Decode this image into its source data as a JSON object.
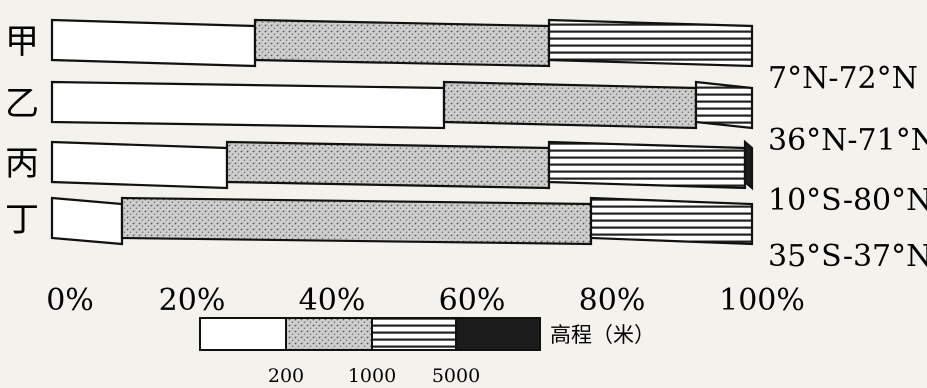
{
  "chart_data": {
    "type": "bar",
    "orientation": "horizontal",
    "stacked": true,
    "title": "",
    "xlabel": "",
    "ylabel": "",
    "xlim": [
      0,
      100
    ],
    "x_ticks": [
      "0%",
      "20%",
      "40%",
      "60%",
      "80%",
      "100%"
    ],
    "categories": [
      "甲",
      "乙",
      "丙",
      "丁"
    ],
    "category_notes": [
      "7°N-72°N",
      "36°N-71°N",
      "10°S-80°N",
      "35°S-37°N"
    ],
    "series": [
      {
        "fill": "white",
        "values": [
          29,
          56,
          25,
          10
        ]
      },
      {
        "fill": "stipple",
        "values": [
          42,
          36,
          46,
          67
        ]
      },
      {
        "fill": "horizontal-lines",
        "values": [
          29,
          8,
          28,
          23
        ]
      },
      {
        "fill": "solid-dark",
        "values": [
          0,
          0,
          1,
          0
        ]
      }
    ],
    "legend": {
      "position": "bottom",
      "unit_label": "高程（米）",
      "boundaries": [
        "200",
        "1000",
        "5000"
      ]
    },
    "grid": false
  }
}
